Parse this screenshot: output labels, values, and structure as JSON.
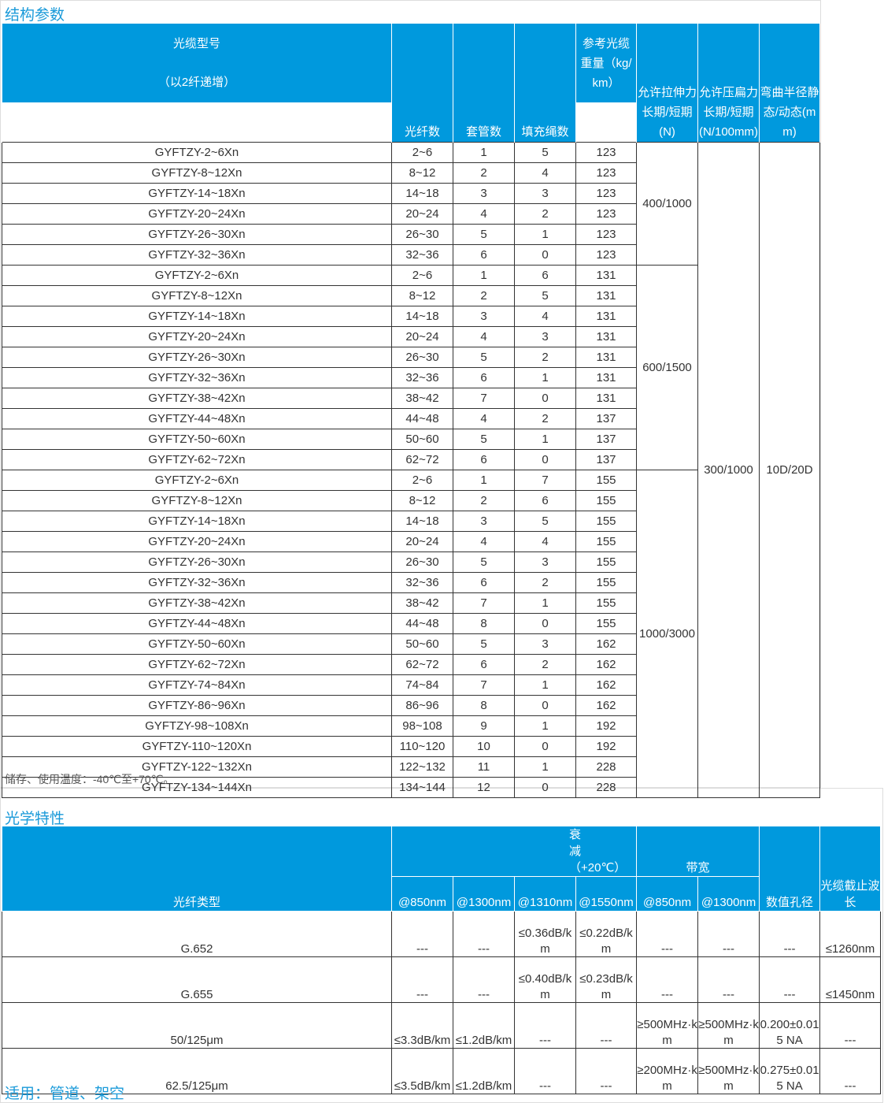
{
  "structure": {
    "title": "结构参数",
    "headers": {
      "model": "光缆型号",
      "model_note": "（以2纤递增）",
      "fiber_count": "光纤数",
      "tube_count": "套管数",
      "filler_count": "填充绳数",
      "weight": "参考光缆重量（kg/km）",
      "tensile": "允许拉伸力长期/短期(N)",
      "crush": "允许压扁力长期/短期(N/100mm)",
      "bend": "弯曲半径静态/动态(mm)"
    },
    "rows": [
      [
        "GYFTZY-2~6Xn",
        "2~6",
        "1",
        "5",
        "123"
      ],
      [
        "GYFTZY-8~12Xn",
        "8~12",
        "2",
        "4",
        "123"
      ],
      [
        "GYFTZY-14~18Xn",
        "14~18",
        "3",
        "3",
        "123"
      ],
      [
        "GYFTZY-20~24Xn",
        "20~24",
        "4",
        "2",
        "123"
      ],
      [
        "GYFTZY-26~30Xn",
        "26~30",
        "5",
        "1",
        "123"
      ],
      [
        "GYFTZY-32~36Xn",
        "32~36",
        "6",
        "0",
        "123"
      ],
      [
        "GYFTZY-2~6Xn",
        "2~6",
        "1",
        "6",
        "131"
      ],
      [
        "GYFTZY-8~12Xn",
        "8~12",
        "2",
        "5",
        "131"
      ],
      [
        "GYFTZY-14~18Xn",
        "14~18",
        "3",
        "4",
        "131"
      ],
      [
        "GYFTZY-20~24Xn",
        "20~24",
        "4",
        "3",
        "131"
      ],
      [
        "GYFTZY-26~30Xn",
        "26~30",
        "5",
        "2",
        "131"
      ],
      [
        "GYFTZY-32~36Xn",
        "32~36",
        "6",
        "1",
        "131"
      ],
      [
        "GYFTZY-38~42Xn",
        "38~42",
        "7",
        "0",
        "131"
      ],
      [
        "GYFTZY-44~48Xn",
        "44~48",
        "4",
        "2",
        "137"
      ],
      [
        "GYFTZY-50~60Xn",
        "50~60",
        "5",
        "1",
        "137"
      ],
      [
        "GYFTZY-62~72Xn",
        "62~72",
        "6",
        "0",
        "137"
      ],
      [
        "GYFTZY-2~6Xn",
        "2~6",
        "1",
        "7",
        "155"
      ],
      [
        "GYFTZY-8~12Xn",
        "8~12",
        "2",
        "6",
        "155"
      ],
      [
        "GYFTZY-14~18Xn",
        "14~18",
        "3",
        "5",
        "155"
      ],
      [
        "GYFTZY-20~24Xn",
        "20~24",
        "4",
        "4",
        "155"
      ],
      [
        "GYFTZY-26~30Xn",
        "26~30",
        "5",
        "3",
        "155"
      ],
      [
        "GYFTZY-32~36Xn",
        "32~36",
        "6",
        "2",
        "155"
      ],
      [
        "GYFTZY-38~42Xn",
        "38~42",
        "7",
        "1",
        "155"
      ],
      [
        "GYFTZY-44~48Xn",
        "44~48",
        "8",
        "0",
        "155"
      ],
      [
        "GYFTZY-50~60Xn",
        "50~60",
        "5",
        "3",
        "162"
      ],
      [
        "GYFTZY-62~72Xn",
        "62~72",
        "6",
        "2",
        "162"
      ],
      [
        "GYFTZY-74~84Xn",
        "74~84",
        "7",
        "1",
        "162"
      ],
      [
        "GYFTZY-86~96Xn",
        "86~96",
        "8",
        "0",
        "162"
      ],
      [
        "GYFTZY-98~108Xn",
        "98~108",
        "9",
        "1",
        "192"
      ],
      [
        "GYFTZY-110~120Xn",
        "110~120",
        "10",
        "0",
        "192"
      ],
      [
        "GYFTZY-122~132Xn",
        "122~132",
        "11",
        "1",
        "228"
      ],
      [
        "GYFTZY-134~144Xn",
        "134~144",
        "12",
        "0",
        "228"
      ]
    ],
    "tensile_groups": [
      {
        "value": "400/1000",
        "rows": 6
      },
      {
        "value": "600/1500",
        "rows": 10
      },
      {
        "value": "1000/3000",
        "rows": 16
      }
    ],
    "crush": "300/1000",
    "bend": "10D/20D",
    "note": "储存、使用温度：-40℃至+70℃。"
  },
  "optical": {
    "title": "光学特性",
    "headers": {
      "fiber_type": "光纤类型",
      "attenuation": "衰减（+20℃）",
      "bandwidth": "带宽",
      "sub": [
        "@850nm",
        "@1300nm",
        "@1310nm",
        "@1550nm",
        "@850nm",
        "@1300nm"
      ],
      "na": "数值孔径",
      "cutoff": "光缆截止波长"
    },
    "rows": [
      [
        "G.652",
        "---",
        "---",
        "≤0.36dB/km",
        "≤0.22dB/km",
        "---",
        "---",
        "---",
        "≤1260nm"
      ],
      [
        "G.655",
        "---",
        "---",
        "≤0.40dB/km",
        "≤0.23dB/km",
        "---",
        "---",
        "---",
        "≤1450nm"
      ],
      [
        "50/125μm",
        "≤3.3dB/km",
        "≤1.2dB/km",
        "---",
        "---",
        "≥500MHz·km",
        "≥500MHz·km",
        "0.200±0.015 NA",
        "---"
      ],
      [
        "62.5/125μm",
        "≤3.5dB/km",
        "≤1.2dB/km",
        "---",
        "---",
        "≥200MHz·km",
        "≥500MHz·km",
        "0.275±0.015 NA",
        "---"
      ]
    ]
  },
  "application": "适用：管道、架空"
}
